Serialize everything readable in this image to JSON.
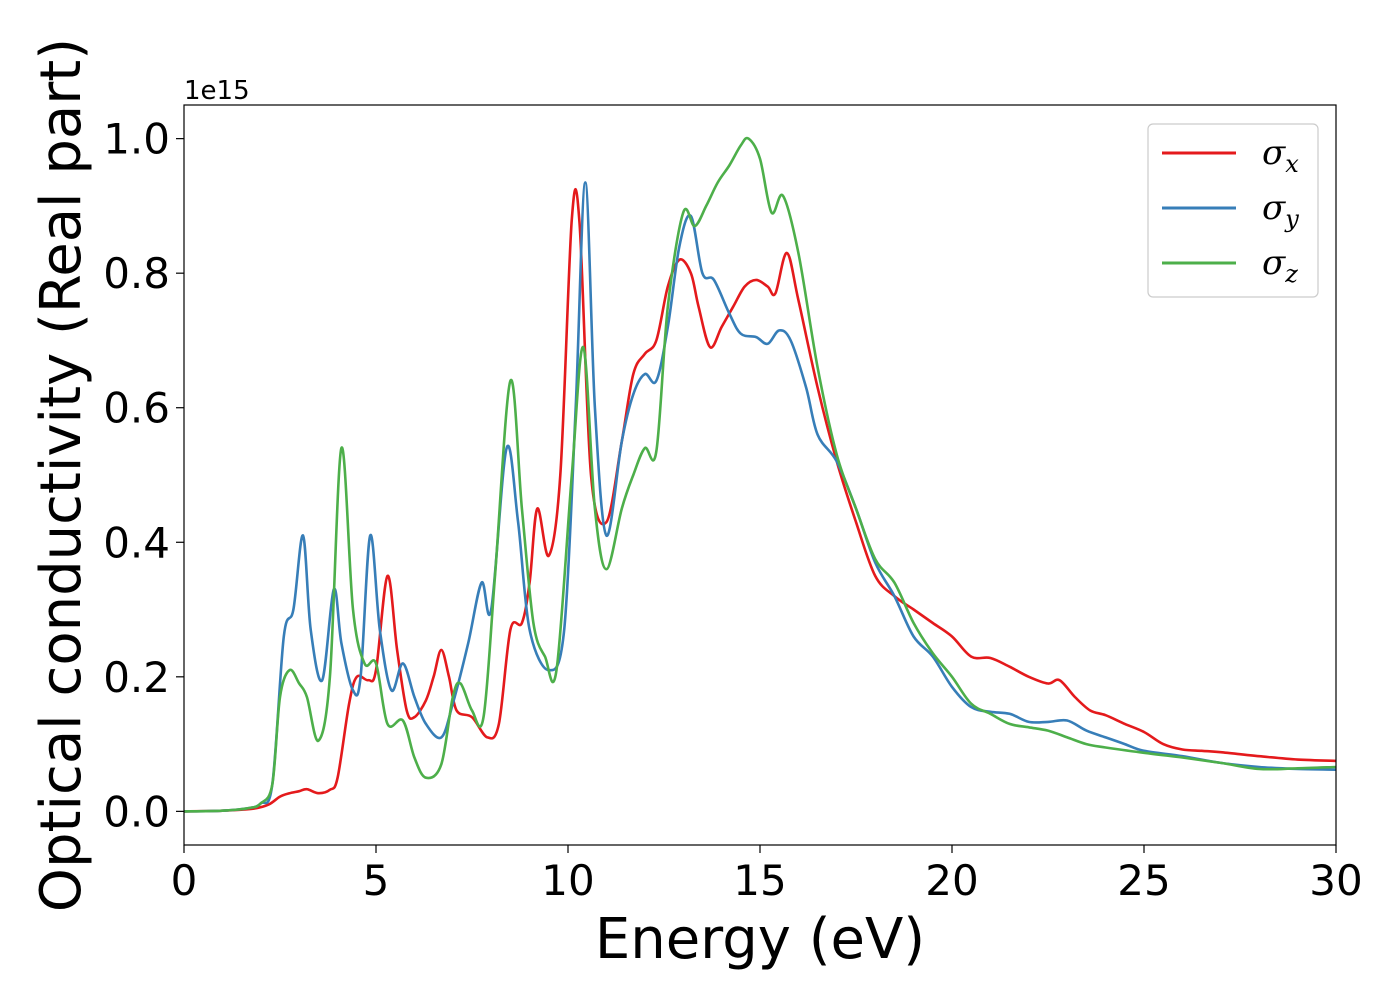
{
  "chart_data": {
    "type": "line",
    "title": "",
    "xlabel": "Energy (eV)",
    "ylabel": "Optical conductivity (Real part)",
    "y_offset_label": "1e15",
    "xlim": [
      0,
      30
    ],
    "ylim": [
      -0.05,
      1.05
    ],
    "x_ticks": [
      0,
      5,
      10,
      15,
      20,
      25,
      30
    ],
    "x_tick_labels": [
      "0",
      "5",
      "10",
      "15",
      "20",
      "25",
      "30"
    ],
    "y_ticks": [
      0.0,
      0.2,
      0.4,
      0.6,
      0.8,
      1.0
    ],
    "y_tick_labels": [
      "0.0",
      "0.2",
      "0.4",
      "0.6",
      "0.8",
      "1.0"
    ],
    "grid": false,
    "legend_position": "top-right",
    "series": [
      {
        "name": "σx",
        "symbol": "σ",
        "subscript": "x",
        "color": "#e41a1c",
        "points": [
          [
            0,
            0
          ],
          [
            1,
            0.001
          ],
          [
            1.8,
            0.004
          ],
          [
            2.2,
            0.01
          ],
          [
            2.5,
            0.022
          ],
          [
            2.75,
            0.027
          ],
          [
            3.0,
            0.03
          ],
          [
            3.2,
            0.033
          ],
          [
            3.5,
            0.027
          ],
          [
            3.8,
            0.032
          ],
          [
            4.0,
            0.05
          ],
          [
            4.3,
            0.16
          ],
          [
            4.5,
            0.2
          ],
          [
            4.8,
            0.195
          ],
          [
            5.0,
            0.21
          ],
          [
            5.3,
            0.35
          ],
          [
            5.55,
            0.24
          ],
          [
            5.8,
            0.15
          ],
          [
            6.0,
            0.14
          ],
          [
            6.3,
            0.165
          ],
          [
            6.5,
            0.2
          ],
          [
            6.7,
            0.24
          ],
          [
            6.9,
            0.2
          ],
          [
            7.1,
            0.15
          ],
          [
            7.5,
            0.14
          ],
          [
            7.9,
            0.11
          ],
          [
            8.2,
            0.13
          ],
          [
            8.5,
            0.27
          ],
          [
            8.8,
            0.28
          ],
          [
            9.0,
            0.34
          ],
          [
            9.2,
            0.45
          ],
          [
            9.5,
            0.38
          ],
          [
            9.8,
            0.5
          ],
          [
            10.1,
            0.88
          ],
          [
            10.3,
            0.875
          ],
          [
            10.6,
            0.5
          ],
          [
            11.0,
            0.43
          ],
          [
            11.4,
            0.55
          ],
          [
            11.7,
            0.65
          ],
          [
            12.0,
            0.68
          ],
          [
            12.3,
            0.7
          ],
          [
            12.6,
            0.78
          ],
          [
            12.9,
            0.82
          ],
          [
            13.2,
            0.8
          ],
          [
            13.4,
            0.75
          ],
          [
            13.7,
            0.69
          ],
          [
            14.0,
            0.72
          ],
          [
            14.3,
            0.75
          ],
          [
            14.6,
            0.78
          ],
          [
            14.9,
            0.79
          ],
          [
            15.2,
            0.78
          ],
          [
            15.4,
            0.77
          ],
          [
            15.7,
            0.83
          ],
          [
            16.0,
            0.76
          ],
          [
            16.5,
            0.63
          ],
          [
            17.0,
            0.52
          ],
          [
            17.5,
            0.43
          ],
          [
            18.0,
            0.35
          ],
          [
            18.5,
            0.32
          ],
          [
            19.0,
            0.3
          ],
          [
            19.5,
            0.28
          ],
          [
            20.0,
            0.26
          ],
          [
            20.5,
            0.23
          ],
          [
            21.0,
            0.228
          ],
          [
            21.5,
            0.215
          ],
          [
            22.0,
            0.2
          ],
          [
            22.5,
            0.19
          ],
          [
            22.8,
            0.195
          ],
          [
            23.2,
            0.17
          ],
          [
            23.6,
            0.15
          ],
          [
            24.0,
            0.143
          ],
          [
            24.5,
            0.13
          ],
          [
            25.0,
            0.118
          ],
          [
            25.5,
            0.1
          ],
          [
            26.0,
            0.092
          ],
          [
            26.5,
            0.09
          ],
          [
            27.0,
            0.088
          ],
          [
            28.0,
            0.082
          ],
          [
            29.0,
            0.077
          ],
          [
            30.0,
            0.075
          ]
        ]
      },
      {
        "name": "σy",
        "symbol": "σ",
        "subscript": "y",
        "color": "#377eb8",
        "points": [
          [
            0,
            0
          ],
          [
            1,
            0.001
          ],
          [
            1.7,
            0.005
          ],
          [
            2.0,
            0.012
          ],
          [
            2.3,
            0.04
          ],
          [
            2.6,
            0.26
          ],
          [
            2.85,
            0.3
          ],
          [
            3.1,
            0.41
          ],
          [
            3.3,
            0.27
          ],
          [
            3.6,
            0.195
          ],
          [
            3.9,
            0.33
          ],
          [
            4.1,
            0.25
          ],
          [
            4.4,
            0.18
          ],
          [
            4.6,
            0.2
          ],
          [
            4.85,
            0.41
          ],
          [
            5.1,
            0.27
          ],
          [
            5.4,
            0.18
          ],
          [
            5.7,
            0.22
          ],
          [
            6.0,
            0.17
          ],
          [
            6.3,
            0.13
          ],
          [
            6.7,
            0.11
          ],
          [
            7.0,
            0.16
          ],
          [
            7.4,
            0.25
          ],
          [
            7.75,
            0.34
          ],
          [
            8.0,
            0.3
          ],
          [
            8.4,
            0.54
          ],
          [
            8.7,
            0.43
          ],
          [
            9.0,
            0.27
          ],
          [
            9.5,
            0.21
          ],
          [
            9.9,
            0.27
          ],
          [
            10.2,
            0.6
          ],
          [
            10.45,
            0.935
          ],
          [
            10.7,
            0.6
          ],
          [
            11.0,
            0.41
          ],
          [
            11.4,
            0.55
          ],
          [
            11.7,
            0.62
          ],
          [
            12.0,
            0.65
          ],
          [
            12.3,
            0.64
          ],
          [
            12.6,
            0.72
          ],
          [
            12.9,
            0.84
          ],
          [
            13.2,
            0.885
          ],
          [
            13.5,
            0.8
          ],
          [
            13.8,
            0.79
          ],
          [
            14.2,
            0.74
          ],
          [
            14.5,
            0.71
          ],
          [
            14.9,
            0.705
          ],
          [
            15.2,
            0.695
          ],
          [
            15.5,
            0.715
          ],
          [
            15.8,
            0.7
          ],
          [
            16.2,
            0.63
          ],
          [
            16.5,
            0.56
          ],
          [
            17.0,
            0.52
          ],
          [
            17.5,
            0.45
          ],
          [
            18.0,
            0.37
          ],
          [
            18.5,
            0.32
          ],
          [
            19.0,
            0.26
          ],
          [
            19.5,
            0.23
          ],
          [
            20.0,
            0.185
          ],
          [
            20.5,
            0.155
          ],
          [
            21.0,
            0.148
          ],
          [
            21.5,
            0.145
          ],
          [
            22.0,
            0.133
          ],
          [
            22.5,
            0.133
          ],
          [
            23.0,
            0.135
          ],
          [
            23.5,
            0.12
          ],
          [
            24.0,
            0.11
          ],
          [
            24.5,
            0.1
          ],
          [
            25.0,
            0.09
          ],
          [
            26.0,
            0.082
          ],
          [
            27.0,
            0.072
          ],
          [
            28.0,
            0.066
          ],
          [
            29.0,
            0.063
          ],
          [
            30.0,
            0.062
          ]
        ]
      },
      {
        "name": "σz",
        "symbol": "σ",
        "subscript": "z",
        "color": "#4daf4a",
        "points": [
          [
            0,
            0
          ],
          [
            1,
            0.001
          ],
          [
            1.7,
            0.005
          ],
          [
            2.0,
            0.012
          ],
          [
            2.3,
            0.04
          ],
          [
            2.5,
            0.17
          ],
          [
            2.75,
            0.21
          ],
          [
            3.0,
            0.19
          ],
          [
            3.2,
            0.17
          ],
          [
            3.5,
            0.105
          ],
          [
            3.8,
            0.2
          ],
          [
            4.1,
            0.54
          ],
          [
            4.4,
            0.3
          ],
          [
            4.7,
            0.22
          ],
          [
            5.0,
            0.22
          ],
          [
            5.3,
            0.13
          ],
          [
            5.7,
            0.135
          ],
          [
            6.0,
            0.08
          ],
          [
            6.3,
            0.05
          ],
          [
            6.7,
            0.07
          ],
          [
            7.0,
            0.17
          ],
          [
            7.2,
            0.19
          ],
          [
            7.5,
            0.15
          ],
          [
            7.8,
            0.14
          ],
          [
            8.1,
            0.35
          ],
          [
            8.5,
            0.64
          ],
          [
            8.8,
            0.45
          ],
          [
            9.1,
            0.28
          ],
          [
            9.4,
            0.23
          ],
          [
            9.7,
            0.21
          ],
          [
            10.1,
            0.5
          ],
          [
            10.4,
            0.69
          ],
          [
            10.7,
            0.45
          ],
          [
            11.0,
            0.36
          ],
          [
            11.4,
            0.45
          ],
          [
            11.7,
            0.5
          ],
          [
            12.0,
            0.54
          ],
          [
            12.3,
            0.535
          ],
          [
            12.6,
            0.75
          ],
          [
            13.0,
            0.89
          ],
          [
            13.3,
            0.87
          ],
          [
            13.6,
            0.9
          ],
          [
            13.9,
            0.935
          ],
          [
            14.2,
            0.96
          ],
          [
            14.5,
            0.99
          ],
          [
            14.7,
            1.0
          ],
          [
            15.0,
            0.97
          ],
          [
            15.3,
            0.89
          ],
          [
            15.6,
            0.915
          ],
          [
            16.0,
            0.83
          ],
          [
            16.5,
            0.66
          ],
          [
            17.0,
            0.53
          ],
          [
            17.5,
            0.45
          ],
          [
            18.0,
            0.375
          ],
          [
            18.5,
            0.34
          ],
          [
            19.0,
            0.28
          ],
          [
            19.5,
            0.235
          ],
          [
            20.0,
            0.2
          ],
          [
            20.5,
            0.16
          ],
          [
            21.0,
            0.145
          ],
          [
            21.5,
            0.13
          ],
          [
            22.0,
            0.125
          ],
          [
            22.5,
            0.12
          ],
          [
            23.0,
            0.11
          ],
          [
            23.5,
            0.1
          ],
          [
            24.0,
            0.095
          ],
          [
            25.0,
            0.087
          ],
          [
            26.0,
            0.08
          ],
          [
            27.0,
            0.072
          ],
          [
            28.0,
            0.063
          ],
          [
            29.0,
            0.064
          ],
          [
            30.0,
            0.066
          ]
        ]
      }
    ]
  }
}
